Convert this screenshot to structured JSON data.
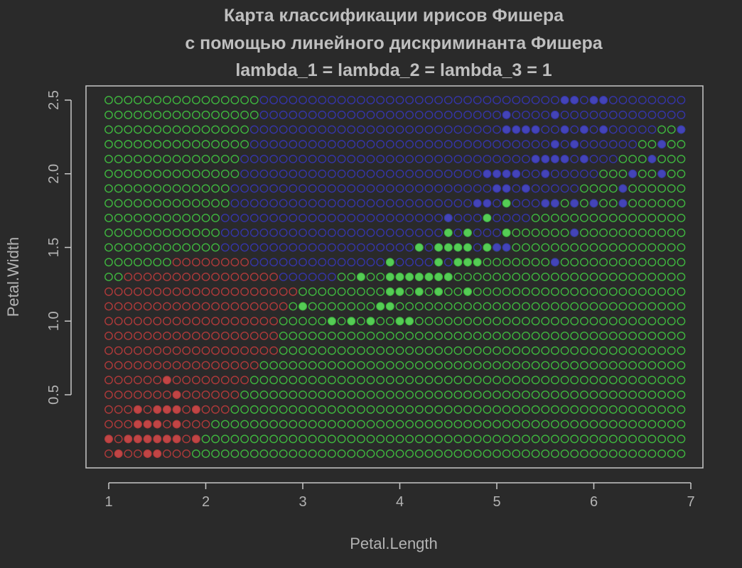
{
  "chart_data": {
    "type": "scatter",
    "title_lines": [
      "Карта классификации ирисов Фишера",
      "с помощью линейного дискриминанта Фишера",
      "lambda_1 = lambda_2 = lambda_3 = 1"
    ],
    "xlabel": "Petal.Length",
    "ylabel": "Petal.Width",
    "xlim": [
      1,
      7
    ],
    "ylim": [
      0.1,
      2.5
    ],
    "x_ticks": [
      1,
      2,
      3,
      4,
      5,
      6,
      7
    ],
    "x_tick_labels": [
      "1",
      "2",
      "3",
      "4",
      "5",
      "6",
      "7"
    ],
    "y_ticks": [
      0.5,
      1.0,
      1.5,
      2.0,
      2.5
    ],
    "y_tick_labels": [
      "0.5",
      "1.0",
      "1.5",
      "2.0",
      "2.5"
    ],
    "grid": false,
    "colors": {
      "setosa": "#b03a3a",
      "versicolor": "#3fb83f",
      "virginica": "#3535a8",
      "setosa_fill": "#c04545",
      "versicolor_fill": "#55cc55",
      "virginica_fill": "#4444b8"
    },
    "classification_map": {
      "x_start": 1.0,
      "x_end": 6.9,
      "x_step": 0.1,
      "y_values": [
        2.5,
        2.4,
        2.3,
        2.2,
        2.1,
        2.0,
        1.9,
        1.8,
        1.7,
        1.6,
        1.5,
        1.4,
        1.3,
        1.2,
        1.1,
        1.0,
        0.9,
        0.8,
        0.7,
        0.6,
        0.5,
        0.4,
        0.3,
        0.2,
        0.1
      ],
      "class_codes": {
        "R": "setosa",
        "G": "versicolor",
        "B": "virginica"
      },
      "rows": [
        "GGGGGGGGGGGGGGGGBBBBBBBBBBBBBBBBBBBBBBBBBBBBBBBBBBBBBBBBBBBB",
        "GGGGGGGGGGGGGGGGBBBBBBBBBBBBBBBBBBBBBBBBBBBBBBBBBBBBBBBBBBBB",
        "GGGGGGGGGGGGGGGBBBBBBBBBBBBBBBBBBBBBBBBBBBBBBBBBBBBBBBBBBGGG",
        "GGGGGGGGGGGGGGGBBBBBBBBBBBBBBBBBBBBBBBBBBBBBBBBBBBBBBBBGGGGG",
        "GGGGGGGGGGGGGGBBBBBBBBBBBBBBBBBBBBBBBBBBBBBBBBBBBBBBBGGGGGGGG",
        "GGGGGGGGGGGGGGBBBBBBBBBBBBBBBBBBBBBBBBBBBBBBBBBBBBBGGGGGGGGGGG",
        "GGGGGGGGGGGGGBBBBBBBBBBBBBBBBBBBBBBBBBBBBBBBBBBBBGGGGGGGGGGGGGG",
        "GGGGGGGGGGGGGBBBBBBBBBBBBBBBBBBBBBBBBBBBBBBBBGGGGGGGGGGGGGGGGG",
        "GGGGGGGGGGGGBBBBBBBBBBBBBBBBBBBBBBBBBBBBBBBBGGGGGGGGGGGGGGGGGG",
        "GGGGGGGGGGGGBBBBBBBBBBBBBBBBBBBBBBBBBBBBBGGGGGGGGGGGGGGGGGGGG",
        "GGGGGGGGGGGGBBBBBBBBBBBBBBBBBBBBBBBBBBBGGGGGGGGGGGGGGGGGGGGGGG",
        "GGGGGGGRRRRRRRRBBBBBBBBBBBBBBBBBBBBBGGGGGGGGGGGGGGGGGGGGGGGGG",
        "GGRRRRRRRRRRRRRRRRBBBBBBGGGGGGGGGGGGGGGGGGGGGGGGGGGGGGGGGGGGG",
        "RRRRRRRRRRRRRRRRRRRRGGGGGGGGGGGGGGGGGGGGGGGGGGGGGGGGGGGGGGGG",
        "RRRRRRRRRRRRRRRRRRRGGGGGGGGGGGGGGGGGGGGGGGGGGGGGGGGGGGGGGGGG",
        "RRRRRRRRRRRRRRRRRRGGGGGGGGGGGGGGGGGGGGGGGGGGGGGGGGGGGGGGGGGGG",
        "RRRRRRRRRRRRRRRRRRGGGGGGGGGGGGGGGGGGGGGGGGGGGGGGGGGGGGGGGGGGG",
        "RRRRRRRRRRRRRRRRRRGGGGGGGGGGGGGGGGGGGGGGGGGGGGGGGGGGGGGGGGGGG",
        "RRRRRRRRRRRRRRRRGGGGGGGGGGGGGGGGGGGGGGGGGGGGGGGGGGGGGGGGGGGGG",
        "RRRRRRRRRRRRRRRGGGGGGGGGGGGGGGGGGGGGGGGGGGGGGGGGGGGGGGGGGGGGG",
        "RRRRRRRRRRRRRRGGGGGGGGGGGGGGGGGGGGGGGGGGGGGGGGGGGGGGGGGGGGGGG",
        "RRRRRRRRRRRRRGGGGGGGGGGGGGGGGGGGGGGGGGGGGGGGGGGGGGGGGGGGGGGGG",
        "RRRRRRRRRRRGGGGGGGGGGGGGGGGGGGGGGGGGGGGGGGGGGGGGGGGGGGGGGGGGG",
        "RRRRRRRRRRGGGGGGGGGGGGGGGGGGGGGGGGGGGGGGGGGGGGGGGGGGGGGGGGGGG",
        "RRRRRRRRRGGGGGGGGGGGGGGGGGGGGGGGGGGGGGGGGGGGGGGGGGGGGGGGGGGGG"
      ]
    },
    "observations": {
      "setosa": [
        [
          1.6,
          0.6
        ],
        [
          1.7,
          0.5
        ],
        [
          1.3,
          0.4
        ],
        [
          1.5,
          0.4
        ],
        [
          1.6,
          0.4
        ],
        [
          1.7,
          0.4
        ],
        [
          1.9,
          0.4
        ],
        [
          1.3,
          0.3
        ],
        [
          1.4,
          0.3
        ],
        [
          1.5,
          0.3
        ],
        [
          1.7,
          0.3
        ],
        [
          1.0,
          0.2
        ],
        [
          1.2,
          0.2
        ],
        [
          1.3,
          0.2
        ],
        [
          1.4,
          0.2
        ],
        [
          1.5,
          0.2
        ],
        [
          1.6,
          0.2
        ],
        [
          1.7,
          0.2
        ],
        [
          1.9,
          0.2
        ],
        [
          1.1,
          0.1
        ],
        [
          1.4,
          0.1
        ],
        [
          1.5,
          0.1
        ]
      ],
      "versicolor": [
        [
          5.1,
          1.8
        ],
        [
          4.5,
          1.7
        ],
        [
          4.9,
          1.7
        ],
        [
          4.5,
          1.6
        ],
        [
          4.7,
          1.6
        ],
        [
          5.1,
          1.6
        ],
        [
          4.2,
          1.5
        ],
        [
          4.4,
          1.5
        ],
        [
          4.5,
          1.5
        ],
        [
          4.6,
          1.5
        ],
        [
          4.7,
          1.5
        ],
        [
          4.9,
          1.5
        ],
        [
          5.0,
          1.5
        ],
        [
          3.9,
          1.4
        ],
        [
          4.4,
          1.4
        ],
        [
          4.6,
          1.4
        ],
        [
          4.7,
          1.4
        ],
        [
          4.8,
          1.4
        ],
        [
          3.6,
          1.3
        ],
        [
          3.9,
          1.3
        ],
        [
          4.0,
          1.3
        ],
        [
          4.1,
          1.3
        ],
        [
          4.2,
          1.3
        ],
        [
          4.3,
          1.3
        ],
        [
          4.4,
          1.3
        ],
        [
          4.5,
          1.3
        ],
        [
          3.9,
          1.2
        ],
        [
          4.0,
          1.2
        ],
        [
          4.2,
          1.2
        ],
        [
          4.4,
          1.2
        ],
        [
          4.7,
          1.2
        ],
        [
          3.0,
          1.1
        ],
        [
          3.8,
          1.1
        ],
        [
          3.9,
          1.1
        ],
        [
          3.3,
          1.0
        ],
        [
          3.5,
          1.0
        ],
        [
          3.7,
          1.0
        ],
        [
          4.0,
          1.0
        ],
        [
          4.1,
          1.0
        ]
      ],
      "virginica": [
        [
          5.7,
          2.5
        ],
        [
          5.8,
          2.5
        ],
        [
          6.0,
          2.5
        ],
        [
          6.1,
          2.5
        ],
        [
          5.1,
          2.4
        ],
        [
          5.6,
          2.4
        ],
        [
          5.1,
          2.3
        ],
        [
          5.2,
          2.3
        ],
        [
          5.3,
          2.3
        ],
        [
          5.4,
          2.3
        ],
        [
          5.7,
          2.3
        ],
        [
          5.9,
          2.3
        ],
        [
          6.1,
          2.3
        ],
        [
          6.9,
          2.3
        ],
        [
          5.6,
          2.2
        ],
        [
          5.8,
          2.2
        ],
        [
          6.7,
          2.2
        ],
        [
          5.4,
          2.1
        ],
        [
          5.5,
          2.1
        ],
        [
          5.6,
          2.1
        ],
        [
          5.7,
          2.1
        ],
        [
          5.9,
          2.1
        ],
        [
          6.6,
          2.1
        ],
        [
          4.9,
          2.0
        ],
        [
          5.0,
          2.0
        ],
        [
          5.1,
          2.0
        ],
        [
          5.2,
          2.0
        ],
        [
          5.5,
          2.0
        ],
        [
          6.4,
          2.0
        ],
        [
          6.7,
          2.0
        ],
        [
          5.0,
          1.9
        ],
        [
          5.1,
          1.9
        ],
        [
          5.3,
          1.9
        ],
        [
          6.3,
          1.9
        ],
        [
          4.8,
          1.8
        ],
        [
          4.9,
          1.8
        ],
        [
          5.5,
          1.8
        ],
        [
          5.6,
          1.8
        ],
        [
          5.8,
          1.8
        ],
        [
          6.0,
          1.8
        ],
        [
          6.3,
          1.8
        ],
        [
          4.5,
          1.7
        ],
        [
          5.8,
          1.6
        ],
        [
          5.0,
          1.5
        ],
        [
          5.1,
          1.5
        ],
        [
          5.6,
          1.4
        ]
      ]
    }
  }
}
